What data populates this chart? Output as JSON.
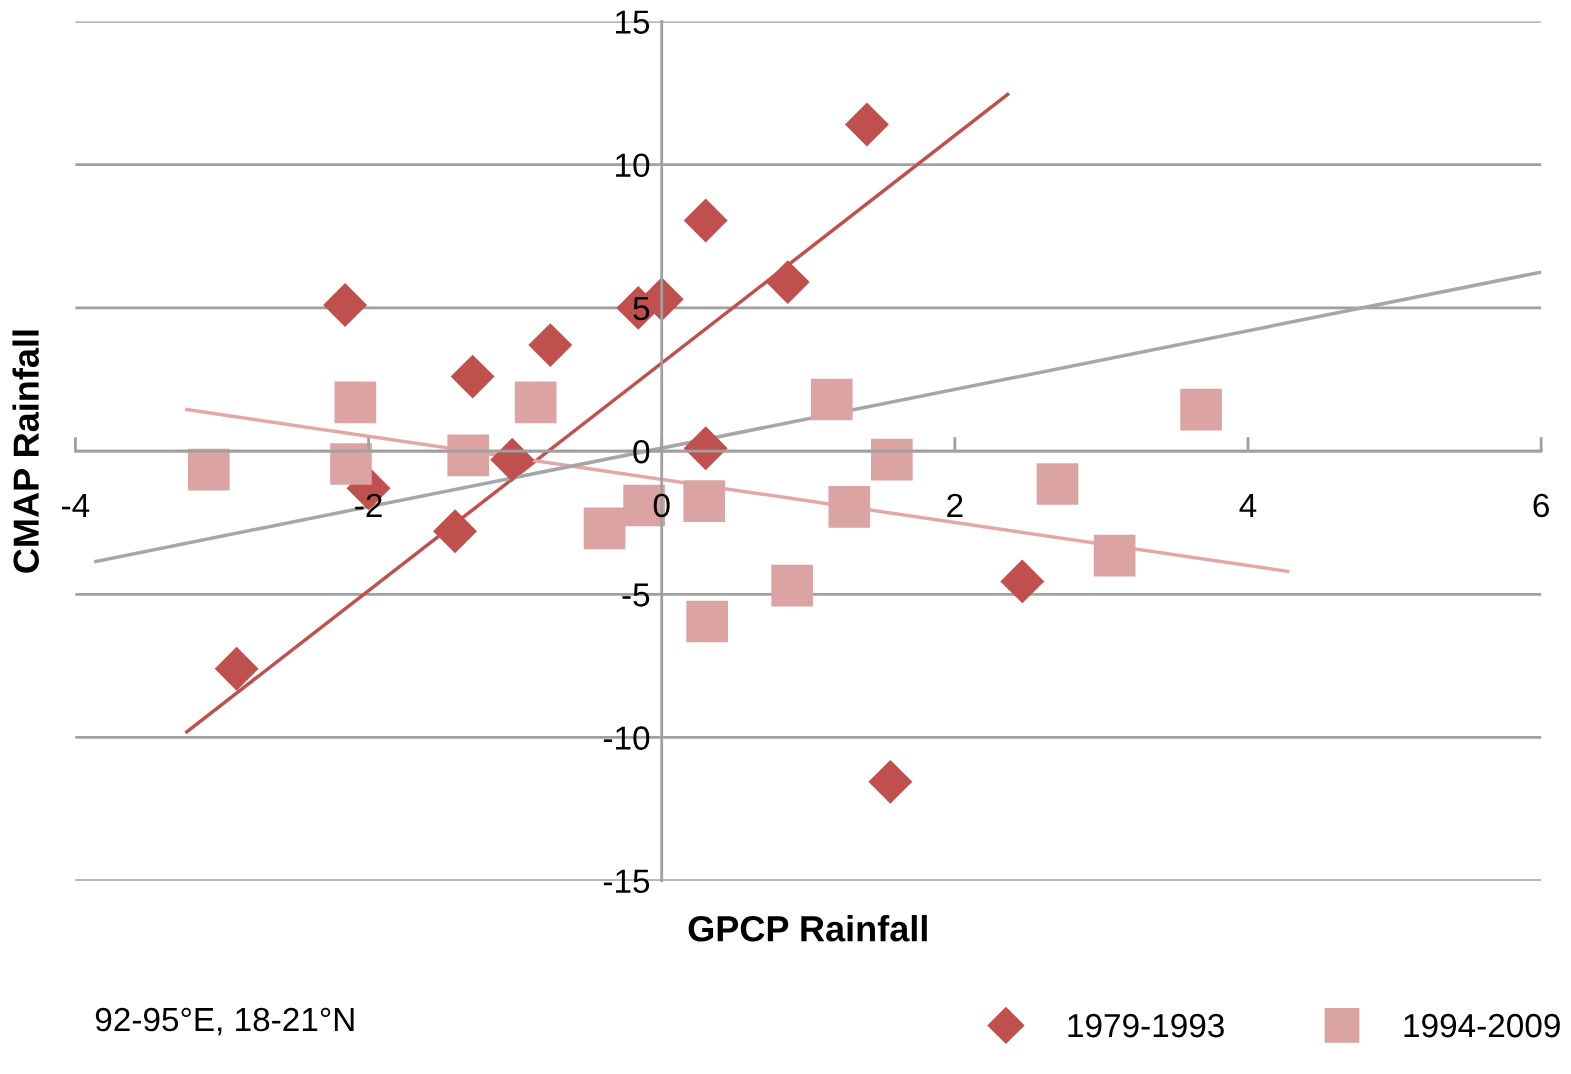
{
  "chart_data": {
    "type": "scatter",
    "xlabel": "GPCP Rainfall",
    "ylabel": "CMAP Rainfall",
    "xlim": [
      -4,
      6
    ],
    "xticks": [
      -4,
      -2,
      0,
      2,
      4,
      6
    ],
    "ylim": [
      -15,
      15
    ],
    "yticks": [
      -15,
      -10,
      -5,
      0,
      5,
      10,
      15
    ],
    "grid": "y",
    "legend": "bottom right",
    "annotations": [
      "92-95°E, 18-21°N"
    ],
    "series": [
      {
        "name": "1979-1993",
        "marker": "diamond",
        "color": "#c0504d",
        "x": [
          -2.9,
          -2.16,
          -2.0,
          -1.41,
          -1.29,
          -1.02,
          -0.76,
          -0.16,
          0.0,
          0.3,
          0.3,
          0.86,
          1.4,
          1.56,
          2.46
        ],
        "values": [
          -7.6,
          5.1,
          -1.3,
          -2.8,
          2.6,
          -0.3,
          3.7,
          5.0,
          5.3,
          8.05,
          0.1,
          5.9,
          11.4,
          -11.55,
          -4.55
        ]
      },
      {
        "name": "1994-2009",
        "marker": "square",
        "color": "#dba3a1",
        "x": [
          -3.09,
          -2.09,
          -2.12,
          -1.32,
          -0.86,
          -0.39,
          -0.12,
          0.29,
          0.31,
          0.89,
          1.16,
          1.28,
          1.57,
          2.7,
          3.09,
          3.68
        ],
        "values": [
          -0.65,
          1.7,
          -0.45,
          -0.15,
          1.7,
          -2.7,
          -1.9,
          -1.75,
          -5.95,
          -4.7,
          1.8,
          -1.95,
          -0.3,
          -1.15,
          -3.65,
          1.45
        ]
      },
      {
        "type": "line",
        "color": "#c0504d",
        "x": [
          -3.24,
          2.36
        ],
        "values": [
          -9.8,
          12.45
        ]
      },
      {
        "type": "line",
        "color": "#e6a6a6",
        "x": [
          -3.24,
          4.27
        ],
        "values": [
          1.45,
          -4.2
        ]
      },
      {
        "type": "line",
        "color": "#a6a6a6",
        "x": [
          -3.86,
          6
        ],
        "values": [
          -3.85,
          6.25
        ]
      }
    ]
  }
}
